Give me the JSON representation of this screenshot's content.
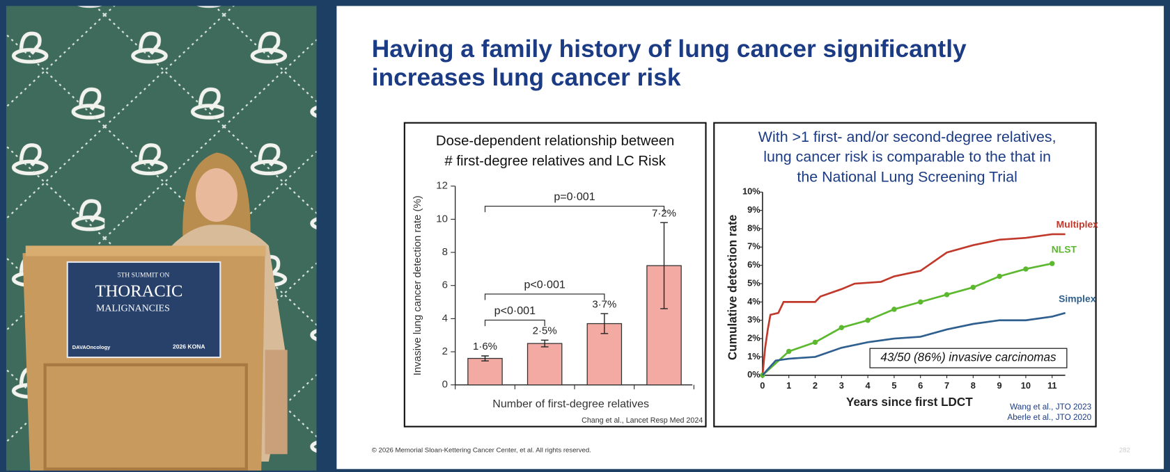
{
  "video": {
    "sign": {
      "line1": "5TH SUMMIT ON",
      "line2": "THORACIC",
      "line3": "MALIGNANCIES",
      "logo_left": "DAVAOncology",
      "logo_right": "2026 KONA"
    }
  },
  "slide": {
    "title": [
      "Having a family history of lung cancer significantly",
      "increases lung cancer risk"
    ],
    "footer": "© 2026 Memorial Sloan-Kettering Cancer Center, et al. All rights reserved.",
    "page_number": "282"
  },
  "chart_data": [
    {
      "type": "bar",
      "title": [
        "Dose-dependent relationship between",
        "# first-degree relatives and LC Risk"
      ],
      "y_label": "Invasive lung cancer detection rate (%)",
      "x_label": "Number of first-degree relatives",
      "categories": [
        null,
        null,
        null,
        null
      ],
      "values": [
        1.6,
        2.5,
        3.7,
        7.2
      ],
      "value_labels": [
        "1·6%",
        "2·5%",
        "3·7%",
        "7·2%"
      ],
      "errors": [
        0.15,
        0.2,
        0.6,
        2.6
      ],
      "color": "#f2aaa3",
      "ylim": [
        0,
        12
      ],
      "yticks": [
        0,
        2,
        4,
        6,
        8,
        10,
        12
      ],
      "annotations": [
        "p<0·001",
        "p<0·001",
        "p=0·001"
      ],
      "source": "Chang et al., Lancet Resp Med 2024"
    },
    {
      "type": "line",
      "title": [
        "With >1 first- and/or second-degree relatives,",
        "lung cancer risk is comparable to the that in",
        "the National Lung Screening Trial"
      ],
      "y_label": "Cumulative detection rate",
      "x_label": "Years since first LDCT",
      "xlim": [
        0,
        11.5
      ],
      "xticks": [
        0,
        1,
        2,
        3,
        4,
        5,
        6,
        7,
        8,
        9,
        10,
        11
      ],
      "ylim": [
        0,
        10
      ],
      "yticks": [
        {
          "value": 0,
          "label": "0%"
        },
        {
          "value": 1,
          "label": "1%"
        },
        {
          "value": 2,
          "label": "2%"
        },
        {
          "value": 3,
          "label": "3%"
        },
        {
          "value": 4,
          "label": "4%"
        },
        {
          "value": 5,
          "label": "5%"
        },
        {
          "value": 6,
          "label": "6%"
        },
        {
          "value": 7,
          "label": "7%"
        },
        {
          "value": 8,
          "label": "8%"
        },
        {
          "value": 9,
          "label": "9%"
        },
        {
          "value": 10,
          "label": "10%"
        }
      ],
      "series": [
        {
          "name": "Multiplex",
          "color": "#c0392b",
          "x": [
            0,
            0.1,
            0.2,
            0.3,
            0.6,
            0.8,
            2,
            2.2,
            3,
            3.5,
            4.5,
            5,
            6,
            6.3,
            7,
            8,
            9,
            10,
            11,
            11.5
          ],
          "values": [
            0,
            1.5,
            2.5,
            3.3,
            3.4,
            4.0,
            4.0,
            4.3,
            4.7,
            5.0,
            5.1,
            5.4,
            5.7,
            6.0,
            6.7,
            7.1,
            7.4,
            7.5,
            7.7,
            7.7
          ]
        },
        {
          "name": "NLST",
          "color": "#5cb82e",
          "markers": true,
          "x": [
            0,
            1,
            2,
            3,
            4,
            5,
            6,
            7,
            8,
            9,
            10,
            11
          ],
          "values": [
            0,
            1.3,
            1.8,
            2.6,
            3.0,
            3.6,
            4.0,
            4.4,
            4.8,
            5.4,
            5.8,
            6.1
          ]
        },
        {
          "name": "Simplex",
          "color": "#2e5f8f",
          "x": [
            0,
            0.5,
            1,
            2,
            3,
            4,
            5,
            6,
            7,
            8,
            9,
            10,
            11,
            11.5
          ],
          "values": [
            0,
            0.8,
            0.9,
            1.0,
            1.5,
            1.8,
            2.0,
            2.1,
            2.5,
            2.8,
            3.0,
            3.0,
            3.2,
            3.4
          ]
        }
      ],
      "annotation": "43/50 (86%) invasive carcinomas",
      "sources": [
        "Wang et al., JTO 2023",
        "Aberle et al., JTO 2020"
      ]
    }
  ]
}
